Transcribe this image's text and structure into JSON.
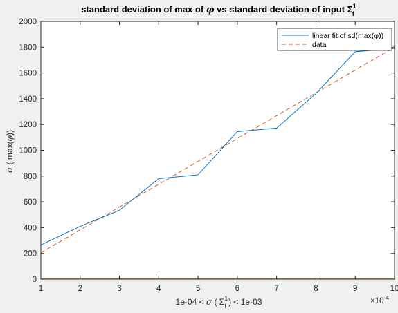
{
  "chart_data": {
    "type": "line",
    "title": {
      "prefix": "standard deviation of max of ",
      "phi": "φ",
      "middle": " vs standard deviation of input ",
      "sigma": "Σ",
      "sigma_sup": "1",
      "sigma_sub": "f"
    },
    "xlabel": {
      "left": "1e-04 < ",
      "sigma_char": "σ",
      "open": " ( ",
      "Sigma": "Σ",
      "sup": "1",
      "sub": "f",
      "close": " ) < 1e-03"
    },
    "ylabel": {
      "sigma_char": "σ",
      "rest": " ( max(",
      "phi": "φ",
      "end": "))"
    },
    "x_multiplier": {
      "times": "×10",
      "exp": "-4"
    },
    "xlim": [
      1,
      10
    ],
    "ylim": [
      0,
      2000
    ],
    "xticks": [
      1,
      2,
      3,
      4,
      5,
      6,
      7,
      8,
      9,
      10
    ],
    "yticks": [
      0,
      200,
      400,
      600,
      800,
      1000,
      1200,
      1400,
      1600,
      1800,
      2000
    ],
    "grid": false,
    "legend_position": "top-right",
    "series": [
      {
        "name": "linear fit of sd(max(φ))",
        "color": "#0072BD",
        "style": "solid",
        "x": [
          1,
          2,
          3,
          4,
          5,
          6,
          7,
          8,
          9,
          10
        ],
        "values": [
          265,
          410,
          535,
          780,
          810,
          1145,
          1172,
          1440,
          1765,
          1790
        ]
      },
      {
        "name": "data",
        "color": "#D95319",
        "style": "dashed",
        "x": [
          1,
          10
        ],
        "values": [
          205,
          1800
        ]
      },
      {
        "name": "",
        "color": "#EDB120",
        "style": "solid",
        "x": [
          1,
          10
        ],
        "values": [
          3,
          3
        ]
      },
      {
        "name": "",
        "color": "#7E2F8E",
        "style": "dashed",
        "x": [
          1,
          10
        ],
        "values": [
          2,
          2
        ]
      }
    ]
  }
}
